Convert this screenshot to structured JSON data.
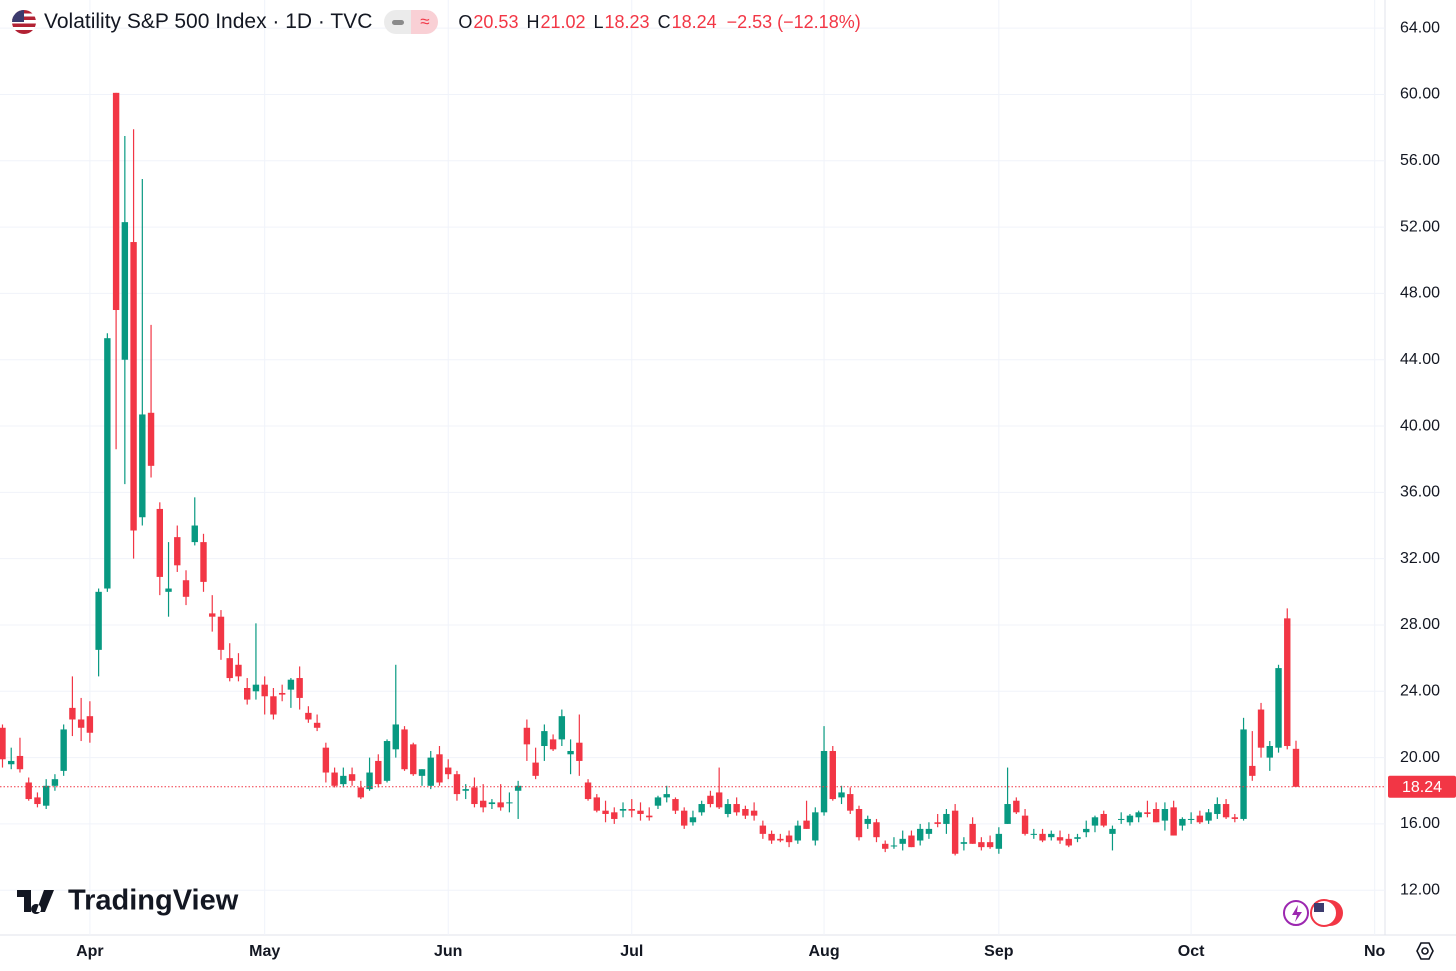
{
  "chart_data": {
    "type": "candlestick",
    "title": "Volatility S&P 500 Index · 1D · TVC",
    "legend_keys": [
      "O",
      "H",
      "L",
      "C"
    ],
    "change_label": "−2.53 (−12.18%)",
    "logo": "TradingView",
    "up_color": "#089981",
    "down_color": "#f23645",
    "grid": true,
    "ylim": [
      9.3,
      65.7
    ],
    "yticks": [
      {
        "value": 12,
        "label": "12.00"
      },
      {
        "value": 16,
        "label": "16.00"
      },
      {
        "value": 20,
        "label": "20.00"
      },
      {
        "value": 24,
        "label": "24.00"
      },
      {
        "value": 28,
        "label": "28.00"
      },
      {
        "value": 32,
        "label": "32.00"
      },
      {
        "value": 36,
        "label": "36.00"
      },
      {
        "value": 40,
        "label": "40.00"
      },
      {
        "value": 44,
        "label": "44.00"
      },
      {
        "value": 48,
        "label": "48.00"
      },
      {
        "value": 52,
        "label": "52.00"
      },
      {
        "value": 56,
        "label": "56.00"
      },
      {
        "value": 60,
        "label": "60.00"
      },
      {
        "value": 64,
        "label": "64.00"
      }
    ],
    "categories": [
      null,
      null,
      null,
      null,
      null,
      null,
      null,
      null,
      null,
      null,
      "Apr",
      null,
      null,
      null,
      null,
      null,
      null,
      null,
      null,
      null,
      null,
      null,
      null,
      null,
      null,
      null,
      null,
      null,
      null,
      null,
      "May",
      null,
      null,
      null,
      null,
      null,
      null,
      null,
      null,
      null,
      null,
      null,
      null,
      null,
      null,
      null,
      null,
      null,
      null,
      null,
      null,
      "Jun",
      null,
      null,
      null,
      null,
      null,
      null,
      null,
      null,
      null,
      null,
      null,
      null,
      null,
      null,
      null,
      null,
      null,
      null,
      null,
      null,
      "Jul",
      null,
      null,
      null,
      null,
      null,
      null,
      null,
      null,
      null,
      null,
      null,
      null,
      null,
      null,
      null,
      null,
      null,
      null,
      null,
      null,
      null,
      "Aug",
      null,
      null,
      null,
      null,
      null,
      null,
      null,
      null,
      null,
      null,
      null,
      null,
      null,
      null,
      null,
      null,
      null,
      null,
      null,
      "Sep",
      null,
      null,
      null,
      null,
      null,
      null,
      null,
      null,
      null,
      null,
      null,
      null,
      null,
      null,
      null,
      null,
      null,
      null,
      null,
      null,
      null,
      "Oct",
      null,
      null,
      null,
      null,
      null,
      null,
      null,
      null,
      null,
      null,
      null,
      null,
      null,
      null,
      null,
      null,
      null,
      null,
      null,
      null,
      "No",
      null,
      null
    ],
    "ohlc": [
      [
        21.8,
        22.0,
        19.4,
        19.9
      ],
      [
        19.6,
        20.6,
        19.3,
        19.8
      ],
      [
        20.1,
        21.2,
        19.1,
        19.3
      ],
      [
        18.5,
        18.8,
        17.4,
        17.5
      ],
      [
        17.6,
        17.9,
        17.0,
        17.2
      ],
      [
        17.1,
        18.7,
        16.9,
        18.3
      ],
      [
        18.3,
        19.0,
        18.0,
        18.7
      ],
      [
        19.2,
        22.0,
        18.9,
        21.7
      ],
      [
        23.0,
        24.9,
        21.3,
        22.3
      ],
      [
        22.3,
        23.6,
        21.0,
        21.8
      ],
      [
        22.5,
        23.4,
        20.9,
        21.5
      ],
      [
        26.5,
        30.2,
        24.9,
        30.0
      ],
      [
        30.2,
        45.6,
        30.0,
        45.3
      ],
      [
        60.1,
        60.1,
        38.6,
        47.0
      ],
      [
        44.0,
        57.5,
        36.5,
        52.3
      ],
      [
        51.1,
        57.9,
        32.0,
        33.7
      ],
      [
        34.5,
        54.9,
        34.0,
        40.7
      ],
      [
        40.8,
        46.1,
        36.9,
        37.6
      ],
      [
        35.0,
        35.4,
        29.8,
        30.9
      ],
      [
        30.0,
        33.0,
        28.5,
        30.2
      ],
      [
        33.3,
        34.0,
        31.2,
        31.6
      ],
      [
        30.7,
        31.3,
        29.2,
        29.7
      ],
      [
        33.0,
        35.7,
        32.8,
        34.0
      ],
      [
        33.0,
        33.5,
        30.0,
        30.6
      ],
      [
        28.7,
        29.8,
        27.6,
        28.5
      ],
      [
        28.5,
        28.9,
        25.9,
        26.5
      ],
      [
        26.0,
        26.9,
        24.6,
        24.8
      ],
      [
        25.6,
        26.3,
        24.6,
        24.9
      ],
      [
        24.2,
        24.8,
        23.2,
        23.5
      ],
      [
        24.0,
        28.1,
        23.5,
        24.4
      ],
      [
        24.4,
        24.9,
        22.6,
        23.7
      ],
      [
        23.7,
        24.2,
        22.3,
        22.6
      ],
      [
        23.9,
        24.4,
        23.4,
        23.8
      ],
      [
        24.1,
        24.8,
        23.0,
        24.7
      ],
      [
        24.8,
        25.5,
        22.9,
        23.6
      ],
      [
        22.7,
        23.1,
        22.1,
        22.3
      ],
      [
        22.1,
        22.6,
        21.6,
        21.8
      ],
      [
        20.6,
        20.9,
        18.5,
        19.1
      ],
      [
        19.1,
        19.4,
        18.2,
        18.3
      ],
      [
        18.4,
        19.4,
        18.2,
        18.9
      ],
      [
        19.0,
        19.4,
        18.3,
        18.6
      ],
      [
        18.2,
        18.6,
        17.5,
        17.6
      ],
      [
        18.1,
        20.0,
        18.0,
        19.1
      ],
      [
        19.8,
        20.2,
        18.2,
        18.4
      ],
      [
        18.6,
        21.1,
        18.5,
        21.0
      ],
      [
        20.5,
        25.6,
        20.0,
        22.0
      ],
      [
        21.7,
        21.9,
        19.2,
        19.3
      ],
      [
        20.8,
        20.9,
        18.9,
        19.0
      ],
      [
        18.9,
        19.3,
        18.3,
        19.3
      ],
      [
        18.3,
        20.4,
        18.1,
        20.0
      ],
      [
        20.2,
        20.7,
        18.3,
        18.5
      ],
      [
        19.4,
        19.9,
        18.7,
        19.0
      ],
      [
        19.0,
        19.2,
        17.4,
        17.8
      ],
      [
        18.0,
        18.4,
        17.5,
        18.1
      ],
      [
        18.2,
        18.8,
        17.0,
        17.2
      ],
      [
        17.4,
        18.4,
        16.7,
        17.0
      ],
      [
        17.2,
        17.5,
        16.9,
        17.3
      ],
      [
        17.3,
        18.4,
        16.8,
        17.0
      ],
      [
        17.3,
        17.9,
        16.7,
        17.3
      ],
      [
        18.0,
        18.6,
        16.3,
        18.3
      ],
      [
        21.8,
        22.3,
        19.8,
        20.8
      ],
      [
        19.7,
        20.6,
        18.7,
        18.9
      ],
      [
        20.7,
        22.0,
        19.8,
        21.6
      ],
      [
        21.1,
        21.4,
        20.4,
        20.5
      ],
      [
        21.1,
        22.9,
        20.7,
        22.5
      ],
      [
        20.2,
        21.1,
        19.0,
        20.4
      ],
      [
        20.9,
        22.6,
        18.9,
        19.8
      ],
      [
        18.5,
        18.7,
        17.4,
        17.5
      ],
      [
        17.6,
        17.8,
        16.7,
        16.8
      ],
      [
        16.8,
        17.4,
        16.1,
        16.6
      ],
      [
        16.7,
        17.0,
        16.0,
        16.3
      ],
      [
        16.8,
        17.3,
        16.4,
        16.9
      ],
      [
        16.9,
        17.5,
        16.4,
        16.8
      ],
      [
        16.8,
        17.3,
        16.2,
        16.6
      ],
      [
        16.5,
        17.0,
        16.2,
        16.4
      ],
      [
        17.1,
        17.7,
        16.9,
        17.6
      ],
      [
        17.6,
        18.3,
        17.3,
        17.8
      ],
      [
        17.5,
        17.6,
        16.6,
        16.8
      ],
      [
        16.8,
        17.0,
        15.7,
        15.9
      ],
      [
        16.1,
        16.8,
        15.9,
        16.4
      ],
      [
        16.7,
        17.4,
        16.5,
        17.2
      ],
      [
        17.7,
        18.0,
        17.0,
        17.2
      ],
      [
        17.9,
        19.4,
        16.9,
        17.0
      ],
      [
        16.6,
        17.5,
        16.4,
        17.2
      ],
      [
        17.2,
        17.6,
        16.5,
        16.7
      ],
      [
        16.9,
        17.1,
        16.3,
        16.5
      ],
      [
        16.8,
        17.3,
        16.2,
        16.5
      ],
      [
        15.9,
        16.2,
        15.1,
        15.4
      ],
      [
        15.4,
        15.6,
        14.8,
        15.0
      ],
      [
        15.1,
        15.4,
        14.9,
        15.0
      ],
      [
        15.3,
        15.6,
        14.6,
        14.9
      ],
      [
        15.0,
        16.2,
        14.8,
        15.9
      ],
      [
        16.2,
        17.4,
        15.7,
        15.7
      ],
      [
        15.0,
        17.0,
        14.7,
        16.7
      ],
      [
        16.7,
        21.9,
        16.5,
        20.4
      ],
      [
        20.4,
        20.7,
        17.4,
        17.5
      ],
      [
        17.6,
        18.3,
        17.2,
        17.9
      ],
      [
        17.8,
        18.2,
        16.6,
        16.8
      ],
      [
        16.9,
        17.1,
        15.0,
        15.2
      ],
      [
        16.0,
        16.5,
        15.7,
        16.3
      ],
      [
        16.1,
        16.3,
        14.9,
        15.2
      ],
      [
        14.8,
        15.0,
        14.3,
        14.5
      ],
      [
        14.7,
        15.2,
        14.5,
        14.7
      ],
      [
        14.8,
        15.6,
        14.4,
        15.1
      ],
      [
        15.3,
        15.6,
        14.6,
        14.6
      ],
      [
        15.0,
        16.0,
        14.7,
        15.7
      ],
      [
        15.4,
        16.1,
        15.1,
        15.7
      ],
      [
        16.1,
        16.6,
        15.8,
        16.0
      ],
      [
        16.0,
        16.9,
        15.4,
        16.6
      ],
      [
        16.8,
        17.2,
        14.1,
        14.2
      ],
      [
        14.8,
        15.2,
        14.4,
        14.9
      ],
      [
        16.0,
        16.4,
        14.8,
        14.8
      ],
      [
        14.9,
        15.2,
        14.4,
        14.6
      ],
      [
        14.9,
        15.3,
        14.5,
        14.6
      ],
      [
        14.5,
        15.8,
        14.2,
        15.4
      ],
      [
        16.0,
        19.4,
        16.0,
        17.2
      ],
      [
        17.4,
        17.6,
        16.6,
        16.7
      ],
      [
        16.5,
        16.9,
        15.3,
        15.4
      ],
      [
        15.4,
        15.7,
        15.1,
        15.4
      ],
      [
        15.4,
        15.7,
        14.9,
        15.0
      ],
      [
        15.2,
        15.6,
        15.0,
        15.4
      ],
      [
        15.2,
        15.6,
        14.8,
        15.0
      ],
      [
        15.1,
        15.4,
        14.6,
        14.7
      ],
      [
        15.1,
        15.4,
        14.9,
        15.2
      ],
      [
        15.5,
        16.2,
        15.2,
        15.7
      ],
      [
        15.9,
        16.5,
        15.5,
        16.4
      ],
      [
        16.6,
        16.8,
        15.8,
        15.9
      ],
      [
        15.4,
        15.9,
        14.4,
        15.7
      ],
      [
        16.3,
        16.7,
        16.0,
        16.3
      ],
      [
        16.1,
        16.6,
        15.9,
        16.5
      ],
      [
        16.4,
        16.8,
        16.1,
        16.7
      ],
      [
        16.7,
        17.4,
        16.4,
        16.6
      ],
      [
        16.9,
        17.3,
        16.1,
        16.1
      ],
      [
        16.2,
        17.3,
        15.6,
        16.9
      ],
      [
        17.0,
        17.4,
        15.3,
        15.3
      ],
      [
        15.9,
        16.4,
        15.6,
        16.3
      ],
      [
        16.3,
        16.7,
        16.0,
        16.3
      ],
      [
        16.5,
        16.8,
        16.0,
        16.1
      ],
      [
        16.2,
        16.9,
        16.0,
        16.7
      ],
      [
        16.6,
        17.6,
        16.3,
        17.2
      ],
      [
        17.2,
        17.5,
        16.3,
        16.4
      ],
      [
        16.4,
        16.6,
        16.1,
        16.3
      ],
      [
        16.3,
        22.4,
        16.2,
        21.7
      ],
      [
        19.5,
        21.6,
        18.6,
        18.9
      ],
      [
        22.9,
        23.3,
        20.0,
        20.6
      ],
      [
        20.0,
        21.0,
        19.2,
        20.7
      ],
      [
        20.6,
        25.6,
        20.3,
        25.4
      ],
      [
        28.4,
        29.0,
        20.5,
        20.7
      ],
      [
        20.53,
        21.02,
        18.23,
        18.24
      ],
      null,
      null,
      null,
      null,
      null,
      null,
      null,
      null,
      null,
      null,
      null
    ]
  }
}
